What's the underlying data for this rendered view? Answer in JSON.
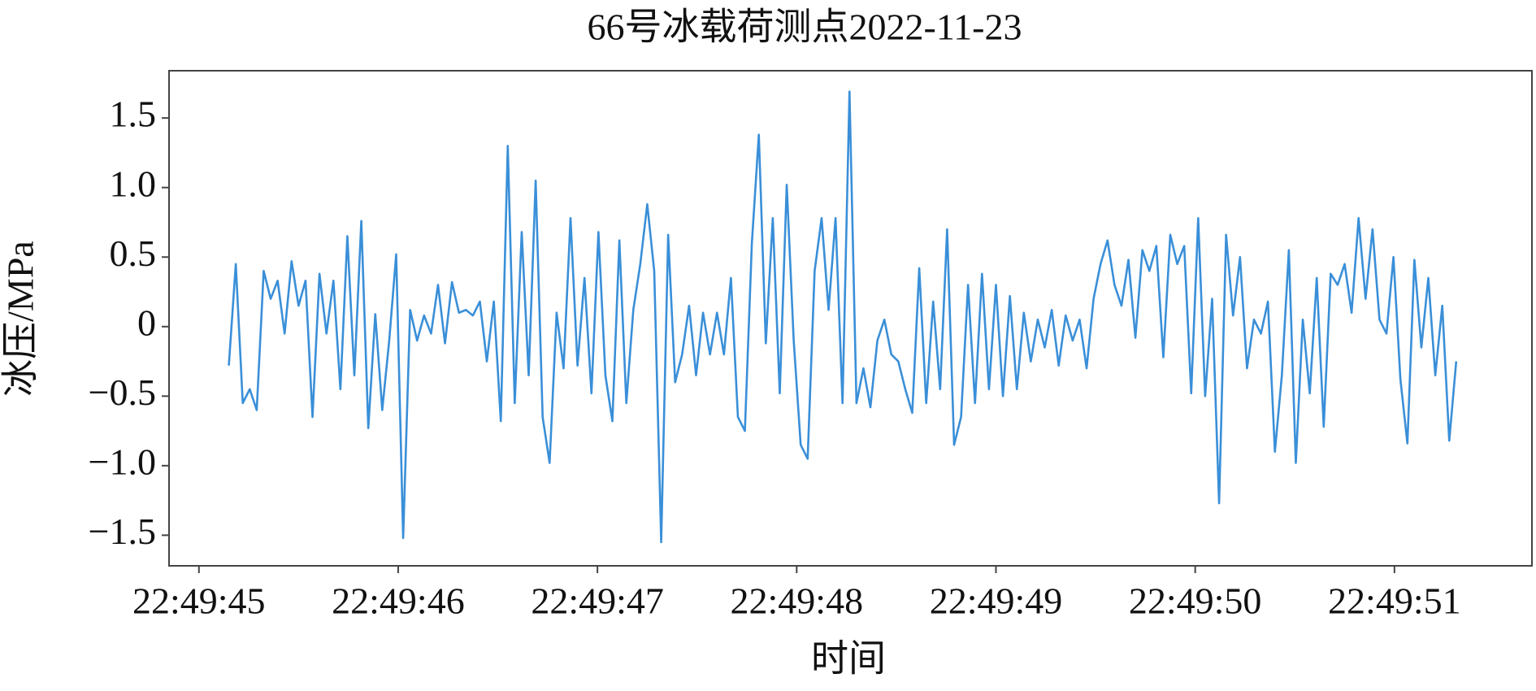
{
  "chart_data": {
    "type": "line",
    "title": "66号冰载荷测点2022-11-23",
    "x_label": "时间",
    "y_label": "冰压/MPa",
    "xlim": [
      44.85,
      51.69
    ],
    "ylim": [
      -1.72,
      1.84
    ],
    "xticks": [
      {
        "value": 45,
        "label": "22:49:45"
      },
      {
        "value": 46,
        "label": "22:49:46"
      },
      {
        "value": 47,
        "label": "22:49:47"
      },
      {
        "value": 48,
        "label": "22:49:48"
      },
      {
        "value": 49,
        "label": "22:49:49"
      },
      {
        "value": 50,
        "label": "22:49:50"
      },
      {
        "value": 51,
        "label": "22:49:51"
      }
    ],
    "yticks": [
      1.5,
      {
        "value": 1,
        "label": "1.0"
      },
      0.5,
      0,
      {
        "value": -0.5,
        "label": "−0.5"
      },
      {
        "value": -1,
        "label": "−1.0"
      },
      {
        "value": -1.5,
        "label": "−1.5"
      }
    ],
    "x": [
      45.15,
      45.185,
      45.22,
      45.255,
      45.29,
      45.325,
      45.36,
      45.395,
      45.43,
      45.465,
      45.5,
      45.535,
      45.57,
      45.605,
      45.64,
      45.675,
      45.71,
      45.745,
      45.78,
      45.815,
      45.85,
      45.885,
      45.92,
      45.955,
      45.99,
      46.025,
      46.06,
      46.095,
      46.13,
      46.165,
      46.2,
      46.235,
      46.27,
      46.305,
      46.34,
      46.375,
      46.41,
      46.445,
      46.48,
      46.515,
      46.55,
      46.585,
      46.62,
      46.655,
      46.69,
      46.725,
      46.76,
      46.795,
      46.83,
      46.865,
      46.9,
      46.935,
      46.97,
      47.005,
      47.04,
      47.075,
      47.11,
      47.145,
      47.18,
      47.215,
      47.25,
      47.285,
      47.32,
      47.355,
      47.39,
      47.425,
      47.46,
      47.495,
      47.53,
      47.565,
      47.6,
      47.635,
      47.67,
      47.705,
      47.74,
      47.775,
      47.81,
      47.845,
      47.88,
      47.915,
      47.95,
      47.985,
      48.02,
      48.055,
      48.09,
      48.125,
      48.16,
      48.195,
      48.23,
      48.265,
      48.3,
      48.335,
      48.37,
      48.405,
      48.44,
      48.475,
      48.51,
      48.545,
      48.58,
      48.615,
      48.65,
      48.685,
      48.72,
      48.755,
      48.79,
      48.825,
      48.86,
      48.895,
      48.93,
      48.965,
      49,
      49.035,
      49.07,
      49.105,
      49.14,
      49.175,
      49.21,
      49.245,
      49.28,
      49.315,
      49.35,
      49.385,
      49.42,
      49.455,
      49.49,
      49.525,
      49.56,
      49.595,
      49.63,
      49.665,
      49.7,
      49.735,
      49.77,
      49.805,
      49.84,
      49.875,
      49.91,
      49.945,
      49.98,
      50.015,
      50.05,
      50.085,
      50.12,
      50.155,
      50.19,
      50.225,
      50.26,
      50.295,
      50.33,
      50.365,
      50.4,
      50.435,
      50.47,
      50.505,
      50.54,
      50.575,
      50.61,
      50.645,
      50.68,
      50.715,
      50.75,
      50.785,
      50.82,
      50.855,
      50.89,
      50.925,
      50.96,
      50.995,
      51.03,
      51.065,
      51.1,
      51.135,
      51.17,
      51.205,
      51.24,
      51.275,
      51.31
    ],
    "series": [
      {
        "color": "#3a8fd8",
        "values": [
          -0.28,
          0.45,
          -0.55,
          -0.45,
          -0.6,
          0.4,
          0.2,
          0.33,
          -0.05,
          0.47,
          0.15,
          0.33,
          -0.65,
          0.38,
          -0.05,
          0.33,
          -0.45,
          0.65,
          -0.35,
          0.76,
          -0.73,
          0.09,
          -0.6,
          -0.1,
          0.52,
          -1.52,
          0.12,
          -0.1,
          0.08,
          -0.05,
          0.3,
          -0.12,
          0.32,
          0.1,
          0.12,
          0.08,
          0.18,
          -0.25,
          0.18,
          -0.68,
          1.3,
          -0.55,
          0.68,
          -0.35,
          1.05,
          -0.65,
          -0.98,
          0.1,
          -0.3,
          0.78,
          -0.28,
          0.35,
          -0.48,
          0.68,
          -0.35,
          -0.68,
          0.62,
          -0.55,
          0.12,
          0.45,
          0.88,
          0.4,
          -1.55,
          0.66,
          -0.4,
          -0.2,
          0.15,
          -0.35,
          0.1,
          -0.2,
          0.1,
          -0.2,
          0.35,
          -0.65,
          -0.75,
          0.6,
          1.38,
          -0.12,
          0.78,
          -0.48,
          1.02,
          -0.1,
          -0.85,
          -0.95,
          0.4,
          0.78,
          0.12,
          0.78,
          -0.55,
          1.69,
          -0.55,
          -0.3,
          -0.58,
          -0.1,
          0.05,
          -0.2,
          -0.25,
          -0.45,
          -0.62,
          0.42,
          -0.55,
          0.18,
          -0.45,
          0.7,
          -0.85,
          -0.65,
          0.3,
          -0.55,
          0.38,
          -0.45,
          0.3,
          -0.5,
          0.22,
          -0.45,
          0.1,
          -0.25,
          0.05,
          -0.15,
          0.12,
          -0.28,
          0.08,
          -0.1,
          0.05,
          -0.3,
          0.2,
          0.45,
          0.62,
          0.3,
          0.15,
          0.48,
          -0.08,
          0.55,
          0.4,
          0.58,
          -0.22,
          0.66,
          0.45,
          0.58,
          -0.48,
          0.78,
          -0.5,
          0.2,
          -1.27,
          0.66,
          0.08,
          0.5,
          -0.3,
          0.05,
          -0.05,
          0.18,
          -0.9,
          -0.35,
          0.55,
          -0.98,
          0.05,
          -0.48,
          0.35,
          -0.72,
          0.38,
          0.3,
          0.45,
          0.1,
          0.78,
          0.2,
          0.7,
          0.05,
          -0.05,
          0.5,
          -0.38,
          -0.84,
          0.48,
          -0.15,
          0.35,
          -0.35,
          0.15,
          -0.82,
          -0.25
        ]
      }
    ]
  }
}
